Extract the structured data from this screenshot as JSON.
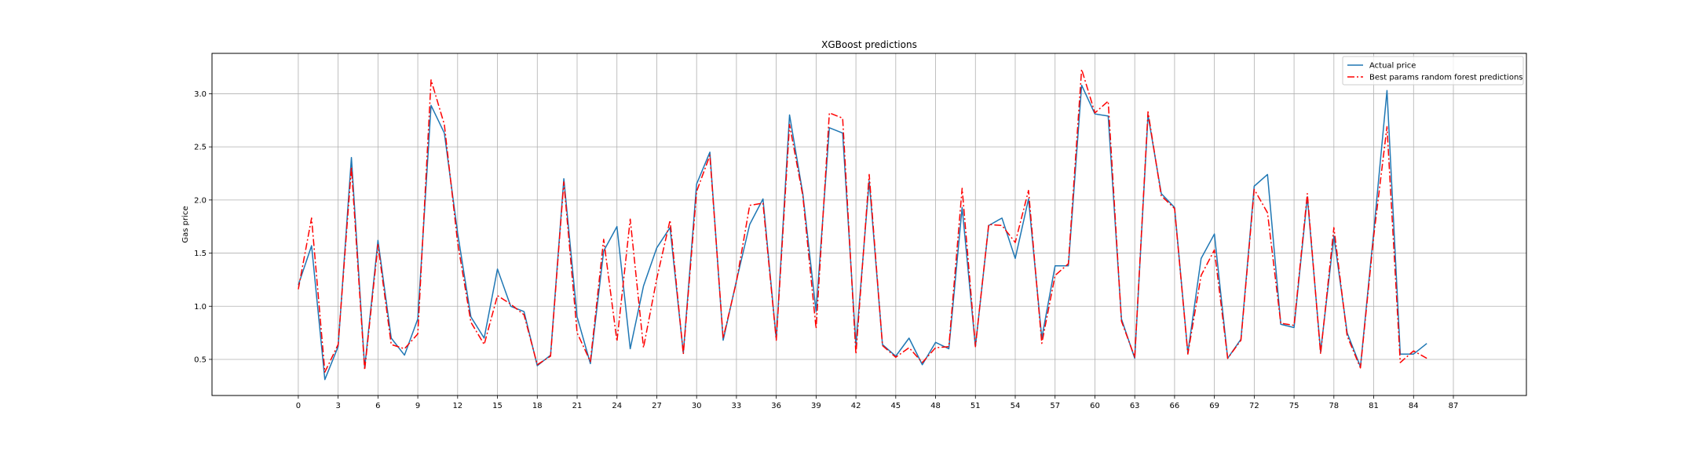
{
  "chart_data": {
    "type": "line",
    "title": "XGBoost predictions",
    "xlabel": "",
    "ylabel": "Gas price",
    "xlim": [
      -6.5,
      92.5
    ],
    "ylim": [
      0.16,
      3.38
    ],
    "xticks": [
      0,
      3,
      6,
      9,
      12,
      15,
      18,
      21,
      24,
      27,
      30,
      33,
      36,
      39,
      42,
      45,
      48,
      51,
      54,
      57,
      60,
      63,
      66,
      69,
      72,
      75,
      78,
      81,
      84,
      87
    ],
    "yticks": [
      0.5,
      1.0,
      1.5,
      2.0,
      2.5,
      3.0
    ],
    "ytick_labels": [
      "0.5",
      "1.0",
      "1.5",
      "2.0",
      "2.5",
      "3.0"
    ],
    "grid": true,
    "legend_position": "upper right",
    "series": [
      {
        "name": "Actual price",
        "color": "#1f77b4",
        "style": "solid",
        "values": [
          1.2,
          1.57,
          0.31,
          0.62,
          2.4,
          0.42,
          1.62,
          0.7,
          0.54,
          0.88,
          2.89,
          2.63,
          1.69,
          0.9,
          0.7,
          1.35,
          1.0,
          0.95,
          0.44,
          0.54,
          2.2,
          0.9,
          0.46,
          1.52,
          1.75,
          0.6,
          1.19,
          1.55,
          1.74,
          0.56,
          2.15,
          2.45,
          0.68,
          1.24,
          1.77,
          2.01,
          0.69,
          2.8,
          2.06,
          0.95,
          2.68,
          2.63,
          0.63,
          2.18,
          0.64,
          0.53,
          0.7,
          0.45,
          0.66,
          0.6,
          1.93,
          0.62,
          1.76,
          1.83,
          1.45,
          2.01,
          0.7,
          1.38,
          1.38,
          3.08,
          2.81,
          2.79,
          0.88,
          0.51,
          2.8,
          2.06,
          1.93,
          0.56,
          1.45,
          1.68,
          0.51,
          0.69,
          2.13,
          2.24,
          0.83,
          0.8,
          2.03,
          0.57,
          1.66,
          0.75,
          0.43,
          1.7,
          3.03,
          0.55,
          0.55,
          0.65
        ]
      },
      {
        "name": "Best params random forest predictions",
        "color": "#ff0000",
        "style": "dashdot",
        "values": [
          1.16,
          1.83,
          0.38,
          0.64,
          2.31,
          0.4,
          1.58,
          0.64,
          0.6,
          0.74,
          3.13,
          2.71,
          1.6,
          0.85,
          0.64,
          1.1,
          1.02,
          0.92,
          0.45,
          0.53,
          2.17,
          0.75,
          0.48,
          1.63,
          0.67,
          1.82,
          0.61,
          1.26,
          1.81,
          0.55,
          2.08,
          2.42,
          0.7,
          1.23,
          1.95,
          1.97,
          0.68,
          2.71,
          2.04,
          0.79,
          2.82,
          2.77,
          0.55,
          2.24,
          0.63,
          0.52,
          0.61,
          0.47,
          0.61,
          0.62,
          2.11,
          0.62,
          1.77,
          1.76,
          1.6,
          2.09,
          0.65,
          1.29,
          1.4,
          3.23,
          2.82,
          2.93,
          0.86,
          0.52,
          2.83,
          2.04,
          1.92,
          0.55,
          1.29,
          1.53,
          0.51,
          0.68,
          2.1,
          1.88,
          0.84,
          0.82,
          2.06,
          0.55,
          1.74,
          0.72,
          0.42,
          1.66,
          2.69,
          0.47,
          0.58,
          0.51
        ]
      }
    ]
  }
}
